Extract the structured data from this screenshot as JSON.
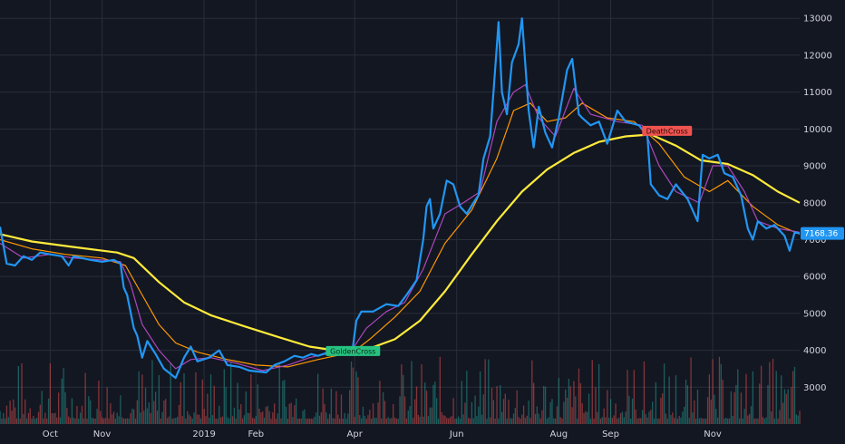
{
  "chart_data": {
    "type": "line",
    "x_unit": "date",
    "y_ticks": [
      3000,
      4000,
      5000,
      6000,
      7000,
      8000,
      9000,
      10000,
      11000,
      12000,
      13000
    ],
    "x_ticks": [
      {
        "label": "Oct",
        "date": "2018-10-01"
      },
      {
        "label": "Nov",
        "date": "2018-11-01"
      },
      {
        "label": "2019",
        "date": "2019-01-01"
      },
      {
        "label": "Feb",
        "date": "2019-02-01"
      },
      {
        "label": "Apr",
        "date": "2019-04-01"
      },
      {
        "label": "Jun",
        "date": "2019-06-01"
      },
      {
        "label": "Aug",
        "date": "2019-08-01"
      },
      {
        "label": "Sep",
        "date": "2019-09-01"
      },
      {
        "label": "Nov",
        "date": "2019-11-01"
      }
    ],
    "ylim": [
      2000,
      13300
    ],
    "xlim": [
      "2018-09-01",
      "2019-12-23"
    ],
    "grid": true,
    "last_price_label": "7168.36",
    "colors": {
      "background": "#131722",
      "grid": "#2a2e39",
      "price": "#2196f3",
      "ma_fast": "#ab47bc",
      "ma_mid": "#ff9800",
      "ma_slow": "#ffeb3b",
      "golden": "#26c281",
      "death": "#ef5350",
      "vol_up": "#26a69a",
      "vol_down": "#ef5350"
    },
    "series": [
      {
        "key": "price",
        "points": [
          [
            "2018-09-01",
            7350
          ],
          [
            "2018-09-05",
            6350
          ],
          [
            "2018-09-10",
            6300
          ],
          [
            "2018-09-15",
            6550
          ],
          [
            "2018-09-20",
            6450
          ],
          [
            "2018-09-25",
            6650
          ],
          [
            "2018-10-01",
            6600
          ],
          [
            "2018-10-08",
            6550
          ],
          [
            "2018-10-12",
            6300
          ],
          [
            "2018-10-15",
            6550
          ],
          [
            "2018-10-25",
            6450
          ],
          [
            "2018-11-01",
            6400
          ],
          [
            "2018-11-08",
            6450
          ],
          [
            "2018-11-12",
            6350
          ],
          [
            "2018-11-14",
            5700
          ],
          [
            "2018-11-16",
            5500
          ],
          [
            "2018-11-20",
            4600
          ],
          [
            "2018-11-22",
            4400
          ],
          [
            "2018-11-25",
            3800
          ],
          [
            "2018-11-28",
            4250
          ],
          [
            "2018-12-03",
            3900
          ],
          [
            "2018-12-08",
            3500
          ],
          [
            "2018-12-15",
            3250
          ],
          [
            "2018-12-20",
            3800
          ],
          [
            "2018-12-24",
            4100
          ],
          [
            "2018-12-28",
            3700
          ],
          [
            "2019-01-04",
            3800
          ],
          [
            "2019-01-10",
            4000
          ],
          [
            "2019-01-15",
            3600
          ],
          [
            "2019-01-22",
            3550
          ],
          [
            "2019-01-28",
            3450
          ],
          [
            "2019-02-07",
            3400
          ],
          [
            "2019-02-12",
            3600
          ],
          [
            "2019-02-18",
            3700
          ],
          [
            "2019-02-24",
            3850
          ],
          [
            "2019-03-01",
            3800
          ],
          [
            "2019-03-06",
            3900
          ],
          [
            "2019-03-10",
            3850
          ],
          [
            "2019-03-20",
            4000
          ],
          [
            "2019-03-31",
            4100
          ],
          [
            "2019-04-02",
            4800
          ],
          [
            "2019-04-05",
            5050
          ],
          [
            "2019-04-12",
            5050
          ],
          [
            "2019-04-20",
            5250
          ],
          [
            "2019-04-27",
            5200
          ],
          [
            "2019-05-02",
            5500
          ],
          [
            "2019-05-08",
            5900
          ],
          [
            "2019-05-12",
            7000
          ],
          [
            "2019-05-14",
            7900
          ],
          [
            "2019-05-16",
            8100
          ],
          [
            "2019-05-18",
            7300
          ],
          [
            "2019-05-22",
            7700
          ],
          [
            "2019-05-26",
            8600
          ],
          [
            "2019-05-30",
            8500
          ],
          [
            "2019-06-03",
            7900
          ],
          [
            "2019-06-07",
            7700
          ],
          [
            "2019-06-11",
            8000
          ],
          [
            "2019-06-14",
            8200
          ],
          [
            "2019-06-17",
            9200
          ],
          [
            "2019-06-21",
            9800
          ],
          [
            "2019-06-23",
            11000
          ],
          [
            "2019-06-26",
            12900
          ],
          [
            "2019-06-28",
            11000
          ],
          [
            "2019-07-01",
            10400
          ],
          [
            "2019-07-04",
            11800
          ],
          [
            "2019-07-08",
            12300
          ],
          [
            "2019-07-10",
            13000
          ],
          [
            "2019-07-14",
            10500
          ],
          [
            "2019-07-17",
            9500
          ],
          [
            "2019-07-20",
            10600
          ],
          [
            "2019-07-24",
            9900
          ],
          [
            "2019-07-28",
            9500
          ],
          [
            "2019-08-01",
            10300
          ],
          [
            "2019-08-06",
            11600
          ],
          [
            "2019-08-09",
            11900
          ],
          [
            "2019-08-13",
            10400
          ],
          [
            "2019-08-15",
            10300
          ],
          [
            "2019-08-20",
            10100
          ],
          [
            "2019-08-25",
            10200
          ],
          [
            "2019-08-30",
            9600
          ],
          [
            "2019-09-05",
            10500
          ],
          [
            "2019-09-10",
            10200
          ],
          [
            "2019-09-18",
            10100
          ],
          [
            "2019-09-23",
            9800
          ],
          [
            "2019-09-25",
            8500
          ],
          [
            "2019-09-30",
            8200
          ],
          [
            "2019-10-05",
            8100
          ],
          [
            "2019-10-10",
            8500
          ],
          [
            "2019-10-17",
            8100
          ],
          [
            "2019-10-23",
            7500
          ],
          [
            "2019-10-26",
            9300
          ],
          [
            "2019-10-30",
            9200
          ],
          [
            "2019-11-04",
            9300
          ],
          [
            "2019-11-08",
            8800
          ],
          [
            "2019-11-13",
            8700
          ],
          [
            "2019-11-18",
            8200
          ],
          [
            "2019-11-22",
            7300
          ],
          [
            "2019-11-25",
            7000
          ],
          [
            "2019-11-28",
            7500
          ],
          [
            "2019-12-03",
            7300
          ],
          [
            "2019-12-08",
            7400
          ],
          [
            "2019-12-14",
            7100
          ],
          [
            "2019-12-17",
            6700
          ],
          [
            "2019-12-20",
            7200
          ],
          [
            "2019-12-23",
            7168.36
          ]
        ]
      },
      {
        "key": "ma_fast",
        "points": [
          [
            "2018-09-01",
            6900
          ],
          [
            "2018-09-15",
            6500
          ],
          [
            "2018-10-01",
            6600
          ],
          [
            "2018-10-15",
            6500
          ],
          [
            "2018-11-01",
            6450
          ],
          [
            "2018-11-12",
            6400
          ],
          [
            "2018-11-18",
            5800
          ],
          [
            "2018-11-25",
            4700
          ],
          [
            "2018-12-05",
            4000
          ],
          [
            "2018-12-15",
            3500
          ],
          [
            "2018-12-24",
            3750
          ],
          [
            "2019-01-05",
            3800
          ],
          [
            "2019-01-20",
            3650
          ],
          [
            "2019-02-05",
            3450
          ],
          [
            "2019-02-20",
            3600
          ],
          [
            "2019-03-05",
            3800
          ],
          [
            "2019-03-20",
            3950
          ],
          [
            "2019-03-31",
            4050
          ],
          [
            "2019-04-08",
            4600
          ],
          [
            "2019-04-20",
            5050
          ],
          [
            "2019-05-01",
            5300
          ],
          [
            "2019-05-12",
            6200
          ],
          [
            "2019-05-25",
            7700
          ],
          [
            "2019-06-05",
            8000
          ],
          [
            "2019-06-15",
            8300
          ],
          [
            "2019-06-25",
            10200
          ],
          [
            "2019-07-05",
            11000
          ],
          [
            "2019-07-12",
            11200
          ],
          [
            "2019-07-20",
            10300
          ],
          [
            "2019-07-30",
            9800
          ],
          [
            "2019-08-10",
            11100
          ],
          [
            "2019-08-20",
            10400
          ],
          [
            "2019-09-05",
            10200
          ],
          [
            "2019-09-20",
            10100
          ],
          [
            "2019-09-30",
            9000
          ],
          [
            "2019-10-10",
            8300
          ],
          [
            "2019-10-24",
            8000
          ],
          [
            "2019-11-01",
            9000
          ],
          [
            "2019-11-10",
            9000
          ],
          [
            "2019-11-20",
            8300
          ],
          [
            "2019-11-28",
            7500
          ],
          [
            "2019-12-10",
            7300
          ],
          [
            "2019-12-23",
            7200
          ]
        ]
      },
      {
        "key": "ma_mid",
        "points": [
          [
            "2018-09-01",
            7000
          ],
          [
            "2018-09-20",
            6750
          ],
          [
            "2018-10-10",
            6600
          ],
          [
            "2018-11-01",
            6500
          ],
          [
            "2018-11-15",
            6300
          ],
          [
            "2018-11-25",
            5500
          ],
          [
            "2018-12-05",
            4700
          ],
          [
            "2018-12-15",
            4200
          ],
          [
            "2018-12-28",
            3950
          ],
          [
            "2019-01-15",
            3750
          ],
          [
            "2019-02-01",
            3600
          ],
          [
            "2019-02-20",
            3550
          ],
          [
            "2019-03-10",
            3750
          ],
          [
            "2019-03-31",
            3950
          ],
          [
            "2019-04-10",
            4300
          ],
          [
            "2019-04-25",
            4900
          ],
          [
            "2019-05-10",
            5600
          ],
          [
            "2019-05-25",
            6900
          ],
          [
            "2019-06-10",
            7800
          ],
          [
            "2019-06-25",
            9200
          ],
          [
            "2019-07-05",
            10500
          ],
          [
            "2019-07-15",
            10700
          ],
          [
            "2019-07-25",
            10200
          ],
          [
            "2019-08-05",
            10300
          ],
          [
            "2019-08-15",
            10700
          ],
          [
            "2019-08-30",
            10300
          ],
          [
            "2019-09-15",
            10200
          ],
          [
            "2019-09-30",
            9600
          ],
          [
            "2019-10-15",
            8700
          ],
          [
            "2019-10-30",
            8300
          ],
          [
            "2019-11-10",
            8600
          ],
          [
            "2019-11-25",
            7900
          ],
          [
            "2019-12-10",
            7400
          ],
          [
            "2019-12-23",
            7150
          ]
        ]
      },
      {
        "key": "ma_slow",
        "points": [
          [
            "2018-09-01",
            7150
          ],
          [
            "2018-09-20",
            6950
          ],
          [
            "2018-10-15",
            6800
          ],
          [
            "2018-11-10",
            6650
          ],
          [
            "2018-11-20",
            6500
          ],
          [
            "2018-12-05",
            5850
          ],
          [
            "2018-12-20",
            5300
          ],
          [
            "2019-01-05",
            4950
          ],
          [
            "2019-01-25",
            4650
          ],
          [
            "2019-02-15",
            4350
          ],
          [
            "2019-03-05",
            4100
          ],
          [
            "2019-03-20",
            4000
          ],
          [
            "2019-03-31",
            3950
          ],
          [
            "2019-04-10",
            4050
          ],
          [
            "2019-04-25",
            4300
          ],
          [
            "2019-05-10",
            4800
          ],
          [
            "2019-05-25",
            5600
          ],
          [
            "2019-06-10",
            6600
          ],
          [
            "2019-06-25",
            7500
          ],
          [
            "2019-07-10",
            8300
          ],
          [
            "2019-07-25",
            8900
          ],
          [
            "2019-08-10",
            9350
          ],
          [
            "2019-08-25",
            9650
          ],
          [
            "2019-09-10",
            9800
          ],
          [
            "2019-09-25",
            9850
          ],
          [
            "2019-10-10",
            9550
          ],
          [
            "2019-10-25",
            9150
          ],
          [
            "2019-11-10",
            9050
          ],
          [
            "2019-11-25",
            8750
          ],
          [
            "2019-12-10",
            8300
          ],
          [
            "2019-12-23",
            8000
          ]
        ]
      }
    ],
    "markers": [
      {
        "label": "GoldenCross",
        "date": "2019-03-31",
        "value": 3980,
        "kind": "golden",
        "anchor": "center"
      },
      {
        "label": "DeathCross",
        "date": "2019-09-22",
        "value": 9950,
        "kind": "death",
        "anchor": "start"
      }
    ]
  }
}
